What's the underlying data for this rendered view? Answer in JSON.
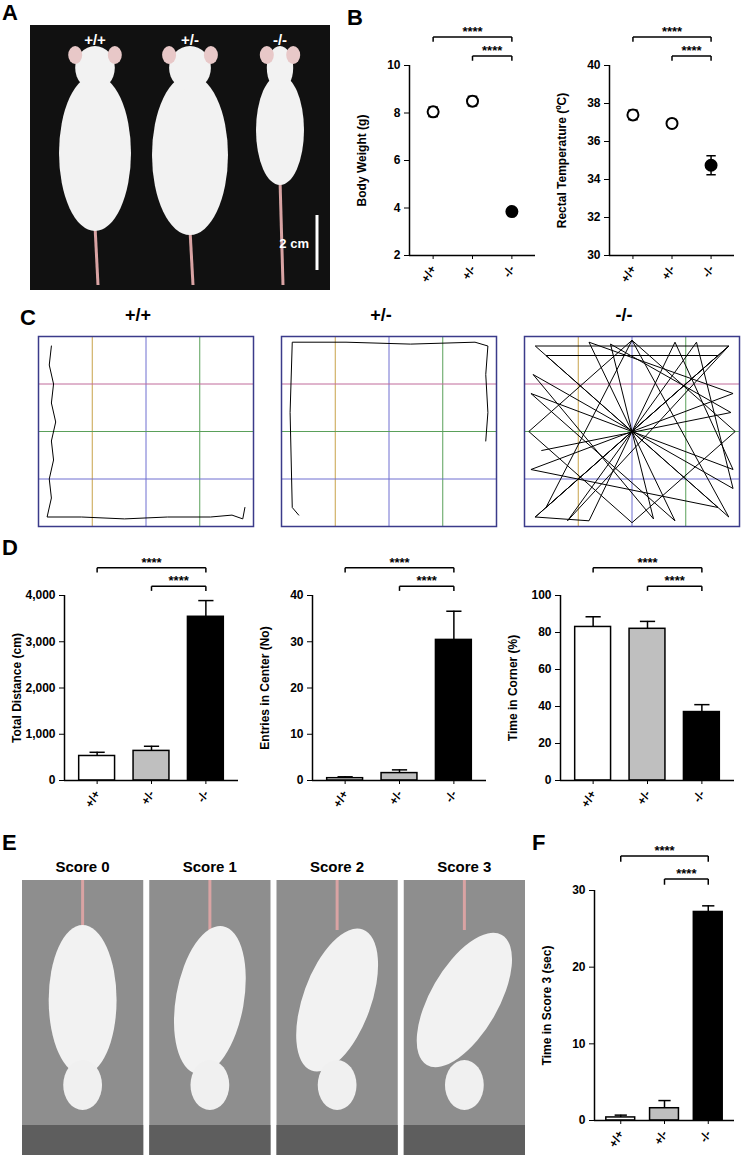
{
  "chart_data": [
    {
      "panel": "A",
      "type": "image",
      "labels": [
        "+/+",
        "+/-",
        "-/-"
      ],
      "scale_bar": "2 cm"
    },
    {
      "panel": "B",
      "type": "scatter",
      "categories": [
        "+/+",
        "+/-",
        "-/-"
      ],
      "values": [
        8.05,
        8.5,
        3.85
      ],
      "errors": [
        0.2,
        0.2,
        0.1
      ],
      "colors": [
        "#ffffff",
        "#ffffff",
        "#000000"
      ],
      "ylabel": "Body Weight (g)",
      "ylim": [
        2,
        10
      ],
      "yticks": [
        2,
        4,
        6,
        8,
        10
      ],
      "significance": [
        {
          "from": "+/+",
          "to": "-/-",
          "label": "****"
        },
        {
          "from": "+/-",
          "to": "-/-",
          "label": "****"
        }
      ]
    },
    {
      "type": "scatter",
      "categories": [
        "+/+",
        "+/-",
        "-/-"
      ],
      "values": [
        37.4,
        36.95,
        34.75
      ],
      "errors": [
        0.25,
        0.2,
        0.5
      ],
      "colors": [
        "#ffffff",
        "#ffffff",
        "#000000"
      ],
      "ylabel": "Rectal Temperature (ºC)",
      "ylim": [
        30,
        40
      ],
      "yticks": [
        30,
        32,
        34,
        36,
        38,
        40
      ],
      "significance": [
        {
          "from": "+/+",
          "to": "-/-",
          "label": "****"
        },
        {
          "from": "+/-",
          "to": "-/-",
          "label": "****"
        }
      ]
    },
    {
      "panel": "C",
      "type": "line",
      "title": "+/+",
      "grid": true,
      "tick_labels": false,
      "xlim": [
        0,
        100
      ],
      "ylim": [
        0,
        100
      ],
      "x": [
        6,
        5,
        7,
        6,
        8,
        6,
        7,
        5,
        6,
        4,
        20,
        40,
        60,
        80,
        90,
        95,
        96
      ],
      "y": [
        95,
        85,
        75,
        65,
        55,
        45,
        35,
        25,
        15,
        5,
        5,
        4,
        5,
        5,
        6,
        4,
        10
      ]
    },
    {
      "type": "line",
      "title": "+/-",
      "grid": true,
      "tick_labels": false,
      "xlim": [
        0,
        100
      ],
      "ylim": [
        0,
        100
      ],
      "x": [
        8,
        5,
        4,
        5,
        30,
        60,
        90,
        96,
        95,
        96,
        95
      ],
      "y": [
        6,
        10,
        60,
        97,
        97,
        96,
        97,
        95,
        80,
        60,
        45
      ]
    },
    {
      "type": "line",
      "title": "-/-",
      "grid": true,
      "tick_labels": false,
      "xlim": [
        0,
        100
      ],
      "ylim": [
        0,
        100
      ],
      "x": [
        5,
        95,
        5,
        95,
        50,
        2,
        50,
        98,
        50,
        10,
        90,
        10,
        90,
        3,
        97,
        30,
        70,
        3,
        97,
        70,
        30,
        5,
        95,
        20,
        80,
        97,
        4,
        60,
        40,
        96,
        8
      ],
      "y": [
        5,
        95,
        95,
        5,
        98,
        50,
        2,
        50,
        98,
        10,
        90,
        90,
        10,
        30,
        70,
        97,
        3,
        70,
        30,
        97,
        3,
        5,
        95,
        3,
        97,
        20,
        80,
        4,
        96,
        60,
        40
      ]
    },
    {
      "panel": "D",
      "type": "bar",
      "categories": [
        "+/+",
        "+/-",
        "-/-"
      ],
      "values": [
        530,
        640,
        3540
      ],
      "errors": [
        80,
        100,
        350
      ],
      "colors": [
        "#ffffff",
        "#bfbfbf",
        "#000000"
      ],
      "ylabel": "Total Distance (cm)",
      "ylim": [
        0,
        4000
      ],
      "yticks": [
        0,
        1000,
        2000,
        3000,
        4000
      ],
      "significance": [
        {
          "from": "+/+",
          "to": "-/-",
          "label": "****"
        },
        {
          "from": "+/-",
          "to": "-/-",
          "label": "****"
        }
      ]
    },
    {
      "type": "bar",
      "categories": [
        "+/+",
        "+/-",
        "-/-"
      ],
      "values": [
        0.5,
        1.6,
        30.4
      ],
      "errors": [
        0.3,
        0.7,
        6.2
      ],
      "colors": [
        "#ffffff",
        "#bfbfbf",
        "#000000"
      ],
      "ylabel": "Entries in Center (No)",
      "ylim": [
        0,
        40
      ],
      "yticks": [
        0,
        10,
        20,
        30,
        40
      ],
      "significance": [
        {
          "from": "+/+",
          "to": "-/-",
          "label": "****"
        },
        {
          "from": "+/-",
          "to": "-/-",
          "label": "****"
        }
      ]
    },
    {
      "type": "bar",
      "categories": [
        "+/+",
        "+/-",
        "-/-"
      ],
      "values": [
        83,
        82,
        37
      ],
      "errors": [
        5.5,
        4,
        4
      ],
      "colors": [
        "#ffffff",
        "#bfbfbf",
        "#000000"
      ],
      "ylabel": "Time in Corner (%)",
      "ylim": [
        0,
        100
      ],
      "yticks": [
        0,
        20,
        40,
        60,
        80,
        100
      ],
      "significance": [
        {
          "from": "+/+",
          "to": "-/-",
          "label": "****"
        },
        {
          "from": "+/-",
          "to": "-/-",
          "label": "****"
        }
      ]
    },
    {
      "panel": "E",
      "type": "image",
      "labels": [
        "Score 0",
        "Score 1",
        "Score 2",
        "Score 3"
      ]
    },
    {
      "panel": "F",
      "type": "bar",
      "categories": [
        "+/+",
        "+/-",
        "-/-"
      ],
      "values": [
        0.4,
        1.6,
        27.2
      ],
      "errors": [
        0.3,
        1.0,
        0.8
      ],
      "colors": [
        "#ffffff",
        "#bfbfbf",
        "#000000"
      ],
      "ylabel": "Time in Score 3 (sec)",
      "ylim": [
        0,
        30
      ],
      "yticks": [
        0,
        10,
        20,
        30
      ],
      "significance": [
        {
          "from": "+/+",
          "to": "-/-",
          "label": "****"
        },
        {
          "from": "+/-",
          "to": "-/-",
          "label": "****"
        }
      ]
    }
  ]
}
